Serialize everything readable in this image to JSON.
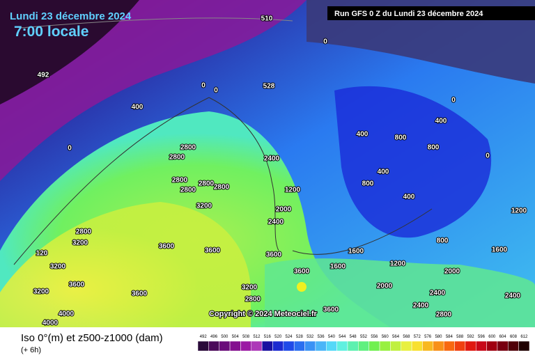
{
  "header": {
    "date": "Lundi 23 décembre 2024",
    "time": "7:00 locale",
    "run": "Run GFS 0 Z du Lundi 23 décembre 2024",
    "copyright": "Copyright © 2024 Meteociel.fr"
  },
  "map": {
    "contour_labels": [
      "510",
      "492",
      "0",
      "0",
      "0",
      "528",
      "400",
      "0",
      "2800",
      "2800",
      "2400",
      "2800",
      "2800",
      "2800",
      "2800",
      "3200",
      "3600",
      "3600",
      "3600",
      "3600",
      "3200",
      "2800",
      "3600",
      "3600",
      "2800",
      "3200",
      "120",
      "3200",
      "3600",
      "3200",
      "4000",
      "4000",
      "400",
      "800",
      "400",
      "800",
      "400",
      "800",
      "400",
      "0",
      "1200",
      "2000",
      "2400",
      "1600",
      "1200",
      "1600",
      "2000",
      "2400",
      "2800",
      "2400",
      "0",
      "1200",
      "1600",
      "800",
      "2000",
      "2400"
    ]
  },
  "legend": {
    "title": "Iso 0°(m) et z500-z1000 (dam)",
    "lead": "(+ 6h)",
    "levels": [
      492,
      496,
      500,
      504,
      508,
      512,
      516,
      520,
      524,
      528,
      532,
      536,
      540,
      544,
      548,
      552,
      556,
      560,
      564,
      568,
      572,
      576,
      580,
      584,
      588,
      592,
      596,
      600,
      604,
      608,
      612
    ],
    "colors": [
      "#2a0a3a",
      "#4b0a5a",
      "#6a0d7a",
      "#84108f",
      "#9b1aa4",
      "#ad38b8",
      "#1a10a0",
      "#1c2ad0",
      "#1f4ae8",
      "#2a6ef0",
      "#3a92f5",
      "#4ab5f8",
      "#55d8f8",
      "#60f0e0",
      "#5ef0b0",
      "#60f080",
      "#70f050",
      "#98f040",
      "#c0f040",
      "#e8f040",
      "#f8e030",
      "#f8b820",
      "#f89018",
      "#f86810",
      "#f04010",
      "#e01810",
      "#c80818",
      "#a00010",
      "#780010",
      "#500008",
      "#200000"
    ]
  }
}
